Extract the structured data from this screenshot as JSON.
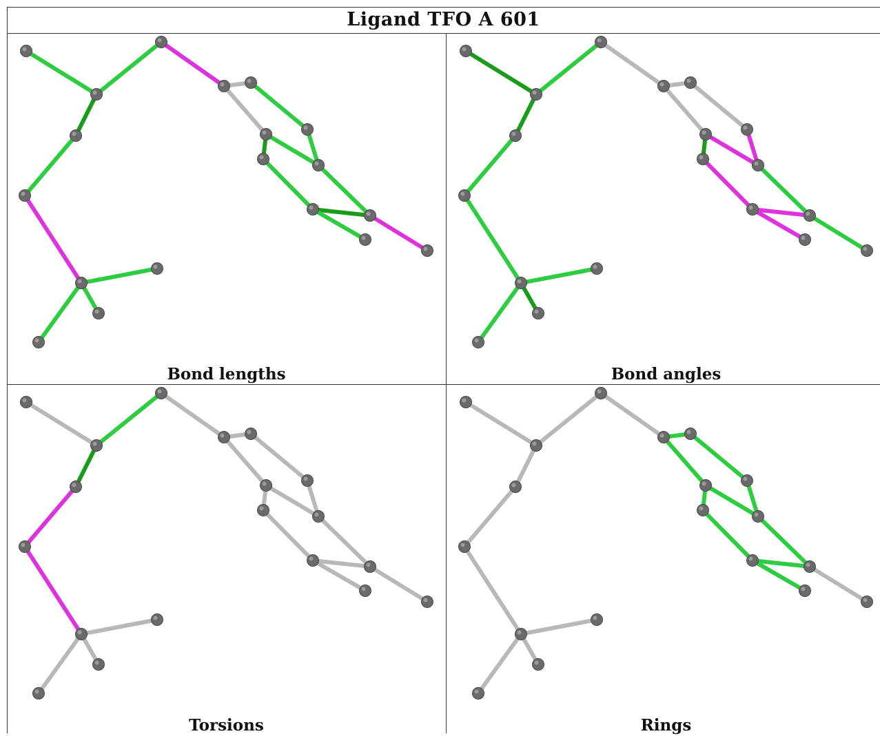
{
  "title": "Ligand TFO A 601",
  "colors": {
    "good": "#2ecc40",
    "good_dark": "#1a9c1a",
    "outlier": "#dd33dd",
    "neutral": "#b8b8b8",
    "atom": "#6a6a6a"
  },
  "panels": [
    {
      "caption": "Bond lengths"
    },
    {
      "caption": "Bond angles"
    },
    {
      "caption": "Torsions"
    },
    {
      "caption": "Rings"
    }
  ],
  "atoms": [
    {
      "id": "F1"
    },
    {
      "id": "C1"
    },
    {
      "id": "O1"
    },
    {
      "id": "C2"
    },
    {
      "id": "S1"
    },
    {
      "id": "C3"
    },
    {
      "id": "F2"
    },
    {
      "id": "F3"
    },
    {
      "id": "O2"
    },
    {
      "id": "C4"
    },
    {
      "id": "C5"
    },
    {
      "id": "C6"
    },
    {
      "id": "C7"
    },
    {
      "id": "C8"
    },
    {
      "id": "C9"
    },
    {
      "id": "C10"
    },
    {
      "id": "C11"
    },
    {
      "id": "C12"
    },
    {
      "id": "F4"
    }
  ],
  "bonds": [
    {
      "a": "F1",
      "b": "C1"
    },
    {
      "a": "C1",
      "b": "O1"
    },
    {
      "a": "C1",
      "b": "C2"
    },
    {
      "a": "C2",
      "b": "S1"
    },
    {
      "a": "S1",
      "b": "C3"
    },
    {
      "a": "C3",
      "b": "F2"
    },
    {
      "a": "C3",
      "b": "F3"
    },
    {
      "a": "C3",
      "b": "O2"
    },
    {
      "a": "O1",
      "b": "C4"
    },
    {
      "a": "C4",
      "b": "C5"
    },
    {
      "a": "C4",
      "b": "C8"
    },
    {
      "a": "C5",
      "b": "C6"
    },
    {
      "a": "C6",
      "b": "C7"
    },
    {
      "a": "C8",
      "b": "C9"
    },
    {
      "a": "C8",
      "b": "C7"
    },
    {
      "a": "C9",
      "b": "C10"
    },
    {
      "a": "C10",
      "b": "C11"
    },
    {
      "a": "C11",
      "b": "C7"
    },
    {
      "a": "C11",
      "b": "F4"
    }
  ],
  "bond_colors": [
    [
      "good",
      "good",
      "good_dark",
      "good",
      "outlier",
      "good",
      "good",
      "good",
      "outlier",
      "neutral",
      "neutral",
      "good",
      "good",
      "good_dark",
      "good",
      "good",
      "good_dark",
      "good",
      "outlier"
    ],
    [
      "good_dark",
      "good",
      "good_dark",
      "good",
      "good",
      "good",
      "good_dark",
      "good",
      "neutral",
      "neutral",
      "neutral",
      "neutral",
      "outlier",
      "good_dark",
      "outlier",
      "outlier",
      "outlier",
      "good",
      "good"
    ],
    [
      "neutral",
      "good",
      "good_dark",
      "outlier",
      "outlier",
      "neutral",
      "neutral",
      "neutral",
      "neutral",
      "neutral",
      "neutral",
      "neutral",
      "neutral",
      "neutral",
      "neutral",
      "neutral",
      "neutral",
      "neutral",
      "neutral"
    ],
    [
      "neutral",
      "neutral",
      "neutral",
      "neutral",
      "neutral",
      "neutral",
      "neutral",
      "neutral",
      "neutral",
      "good",
      "good",
      "good",
      "good",
      "good",
      "good",
      "good",
      "good",
      "good",
      "neutral"
    ]
  ]
}
